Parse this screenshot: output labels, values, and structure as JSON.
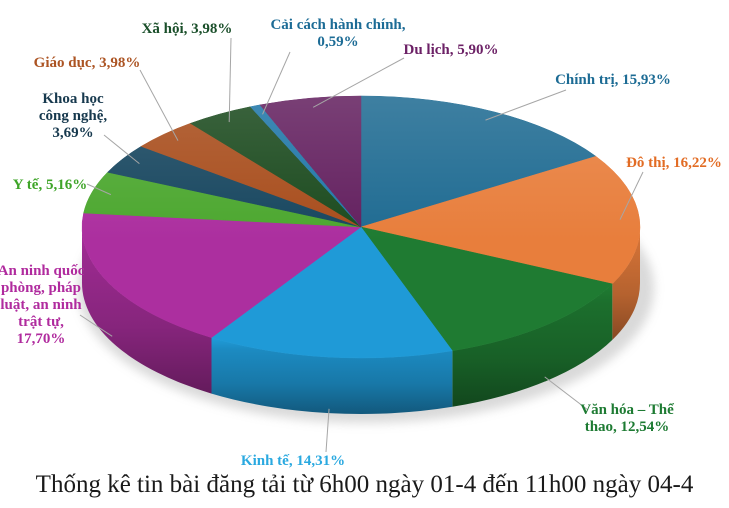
{
  "chart_data": {
    "type": "pie",
    "projection": "3d",
    "title": "Thống kê tin bài đăng tải từ 6h00 ngày 01-4 đến 11h00 ngày 04-4",
    "unit": "%",
    "value_format": "comma-decimal-percent",
    "start_angle_deg": 0,
    "direction": "clockwise",
    "legend": "none",
    "labels_style": "outside-with-leader-lines",
    "leader_line_color": "#A6A6A6",
    "background": "#FFFFFF",
    "slices": [
      {
        "id": "chinh-tri",
        "name": "Chính trị",
        "value": 15.93,
        "label": "Chính trị, 15,93%",
        "label_lines": [
          "Chính trị, 15,93%"
        ],
        "color": "#1F6B92",
        "label_color": "#1C6B94"
      },
      {
        "id": "do-thi",
        "name": "Đô thị",
        "value": 16.22,
        "label": "Đô thị, 16,22%",
        "label_lines": [
          "Đô thị, 16,22%"
        ],
        "color": "#E87E3C",
        "label_color": "#E26C24"
      },
      {
        "id": "van-hoa-the-thao",
        "name": "Văn hóa – Thể thao",
        "value": 12.54,
        "label": "Văn hóa – Thể thao, 12,54%",
        "label_lines": [
          "Văn hóa – Thể",
          "thao, 12,54%"
        ],
        "color": "#1F7B32",
        "label_color": "#1E7B33"
      },
      {
        "id": "kinh-te",
        "name": "Kinh tế",
        "value": 14.31,
        "label": "Kinh tế, 14,31%",
        "label_lines": [
          "Kinh tế, 14,31%"
        ],
        "color": "#1F9AD7",
        "label_color": "#2AA9E0"
      },
      {
        "id": "an-ninh-quoc-phong",
        "name": "An ninh quốc phòng, pháp luật, an ninh trật tự",
        "value": 17.7,
        "label": "An ninh quốc phòng, pháp luật, an ninh trật tự, 17,70%",
        "label_lines": [
          "An ninh quốc",
          "phòng, pháp",
          "luật, an ninh",
          "trật tự,",
          "17,70%"
        ],
        "color": "#AC2F9F",
        "label_color": "#B02B9E"
      },
      {
        "id": "y-te",
        "name": "Y tế",
        "value": 5.16,
        "label": "Y tế, 5,16%",
        "label_lines": [
          "Y tế, 5,16%"
        ],
        "color": "#4CA72F",
        "label_color": "#3FA529"
      },
      {
        "id": "khoa-hoc-cong-nghe",
        "name": "Khoa học công nghệ",
        "value": 3.69,
        "label": "Khoa học công nghệ, 3,69%",
        "label_lines": [
          "Khoa học",
          "công nghệ,",
          "3,69%"
        ],
        "color": "#17465F",
        "label_color": "#17394E"
      },
      {
        "id": "giao-duc",
        "name": "Giáo dục",
        "value": 3.98,
        "label": "Giáo dục, 3,98%",
        "label_lines": [
          "Giáo dục, 3,98%"
        ],
        "color": "#A84D1C",
        "label_color": "#AC5423"
      },
      {
        "id": "xa-hoi",
        "name": "Xã hội",
        "value": 3.98,
        "label": "Xã hội, 3,98%",
        "label_lines": [
          "Xã hội, 3,98%"
        ],
        "color": "#1B4A1E",
        "label_color": "#1A4F2A"
      },
      {
        "id": "cai-cach-hanh-chinh",
        "name": "Cải cách hành chính",
        "value": 0.59,
        "label": "Cải cách hành chính, 0,59%",
        "label_lines": [
          "Cải cách hành chính,",
          "0,59%"
        ],
        "color": "#2077A8",
        "label_color": "#1D6C96"
      },
      {
        "id": "du-lich",
        "name": "Du lịch",
        "value": 5.9,
        "label": "Du lịch, 5,90%",
        "label_lines": [
          "Du lịch, 5,90%"
        ],
        "color": "#63205F",
        "label_color": "#6C2166"
      }
    ]
  }
}
